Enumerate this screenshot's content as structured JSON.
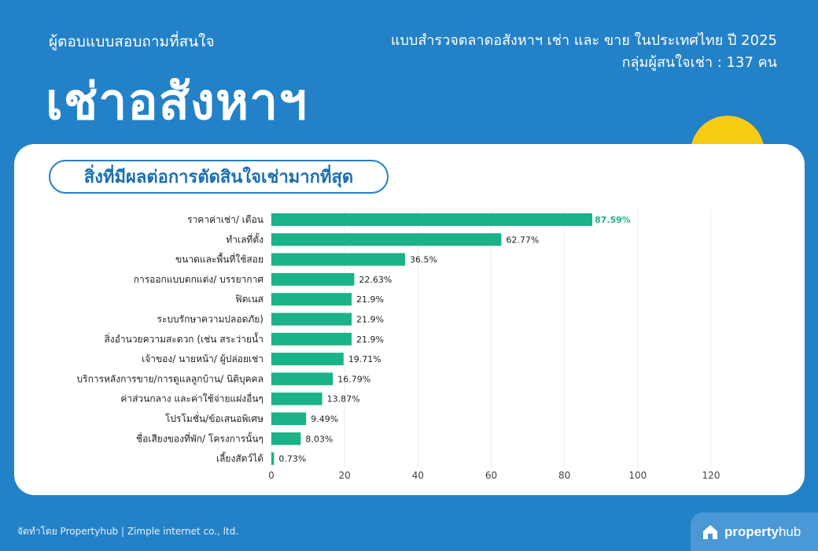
{
  "header": {
    "eyebrow": "ผู้ตอบแบบสอบถามที่สนใจ",
    "hero": "เช่าอสังหาฯ",
    "survey_title": "แบบสำรวจตลาดอสังหาฯ เช่า และ ขาย ในประเทศไทย ปี 2025",
    "respondents": "กลุ่มผู้สนใจเช่า : 137 คน"
  },
  "colors": {
    "background": "#2381c7",
    "bar": "#1bb288",
    "accent": "#f9cc14"
  },
  "chart_data": {
    "type": "bar",
    "orientation": "horizontal",
    "title": "สิ่งที่มีผลต่อการตัดสินใจเช่ามากที่สุด",
    "categories": [
      "ราคาค่าเช่า/ เดือน",
      "ทำเลที่ตั้ง",
      "ขนาดและพื้นที่ใช้สอย",
      "การออกแบบตกแต่ง/ บรรยากาศ",
      "ฟิตเนส",
      "ระบบรักษาความปลอดภัย)",
      "สิ่งอำนวยความสะดวก (เช่น สระว่ายน้ำ",
      "เจ้าของ/ นายหน้า/ ผู้ปล่อยเช่า",
      "บริการหลังการขาย/การดูแลลูกบ้าน/ นิติบุคคล",
      "ค่าส่วนกลาง และค่าใช้จ่ายแฝงอื่นๆ",
      "โปรโมชั่น/ข้อเสนอพิเศษ",
      "ชื่อเสียงของที่พัก/ โครงการนั้นๆ",
      "เลี้ยงสัตว์ได้"
    ],
    "values": [
      87.59,
      62.77,
      36.5,
      22.63,
      21.9,
      21.9,
      21.9,
      19.71,
      16.79,
      13.87,
      9.49,
      8.03,
      0.73
    ],
    "value_labels": [
      "87.59%",
      "62.77%",
      "36.5%",
      "22.63%",
      "21.9%",
      "21.9%",
      "21.9%",
      "19.71%",
      "16.79%",
      "13.87%",
      "9.49%",
      "8.03%",
      "0.73%"
    ],
    "xlim": [
      0,
      120
    ],
    "x_ticks": [
      0,
      20,
      40,
      60,
      80,
      100,
      120
    ],
    "xlabel": "",
    "ylabel": "",
    "grid": "vertical",
    "highlight_index": 0
  },
  "footer": {
    "credit": "จัดทำโดย Propertyhub | Zimple internet co., ltd.",
    "logo_bold": "property",
    "logo_light": "hub"
  }
}
